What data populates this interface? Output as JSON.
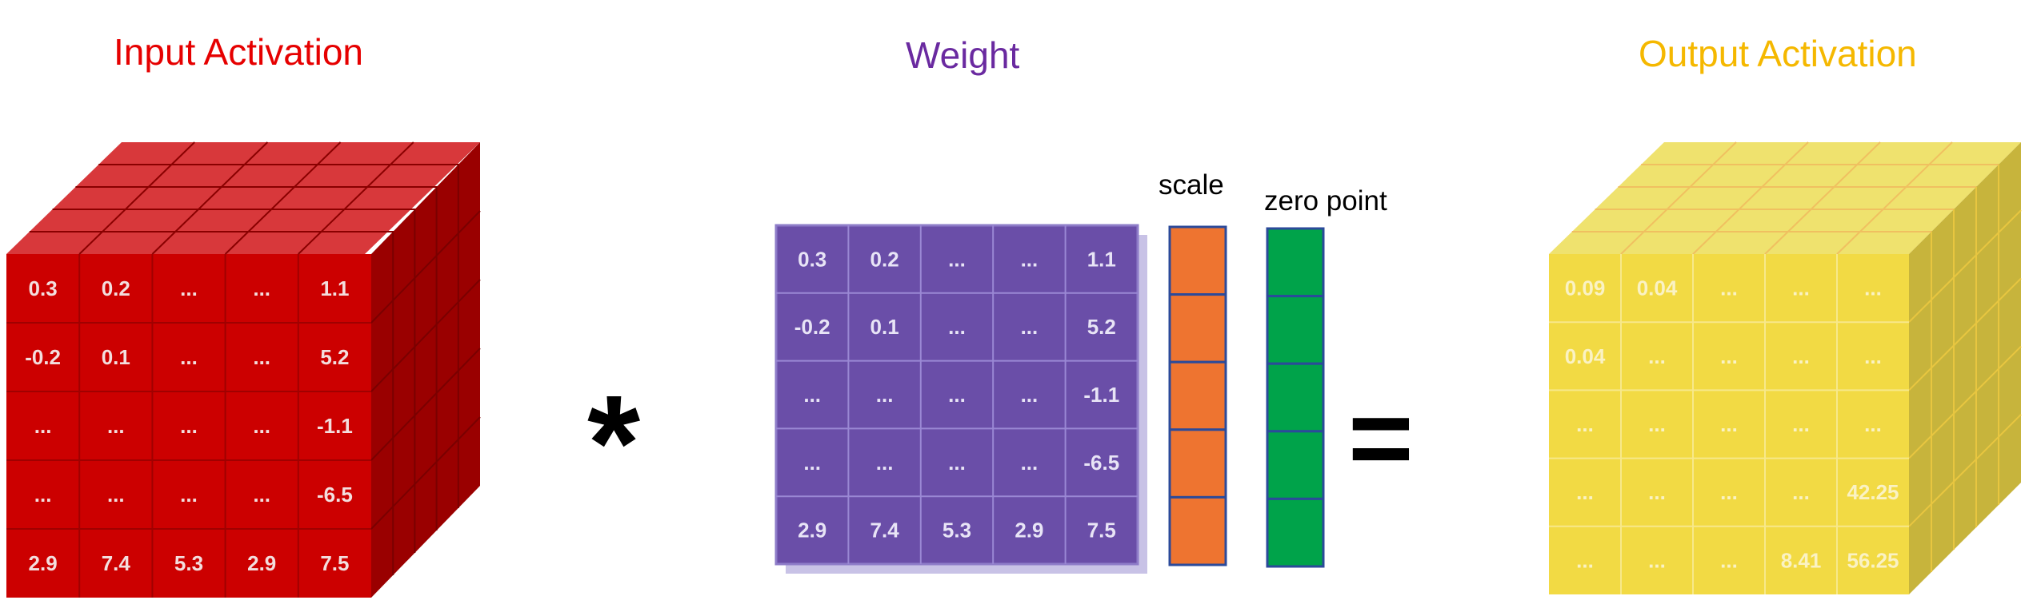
{
  "titles": {
    "input": "Input Activation",
    "weight": "Weight",
    "output": "Output Activation"
  },
  "labels": {
    "scale": "scale",
    "zero_point": "zero point"
  },
  "operators": {
    "multiply": "*",
    "equals": "="
  },
  "colors": {
    "input_front": "#cc0000",
    "input_top": "#d8383b",
    "input_side": "#9a0000",
    "weight_front": "#6a4ea8",
    "weight_shadow": "#c8c2e6",
    "scale": "#ee7430",
    "zero_point": "#00a34a",
    "output_front": "#f2da44",
    "output_top": "#efe26e",
    "output_side": "#c7b43c",
    "input_title": "#e60000",
    "weight_title": "#6a2aa0",
    "output_title": "#f5b800"
  },
  "input_matrix": [
    [
      "0.3",
      "0.2",
      "...",
      "...",
      "1.1"
    ],
    [
      "-0.2",
      "0.1",
      "...",
      "...",
      "5.2"
    ],
    [
      "...",
      "...",
      "...",
      "...",
      "-1.1"
    ],
    [
      "...",
      "...",
      "...",
      "...",
      "-6.5"
    ],
    [
      "2.9",
      "7.4",
      "5.3",
      "2.9",
      "7.5"
    ]
  ],
  "weight_matrix": [
    [
      "0.3",
      "0.2",
      "...",
      "...",
      "1.1"
    ],
    [
      "-0.2",
      "0.1",
      "...",
      "...",
      "5.2"
    ],
    [
      "...",
      "...",
      "...",
      "...",
      "-1.1"
    ],
    [
      "...",
      "...",
      "...",
      "...",
      "-6.5"
    ],
    [
      "2.9",
      "7.4",
      "5.3",
      "2.9",
      "7.5"
    ]
  ],
  "output_matrix": [
    [
      "0.09",
      "0.04",
      "...",
      "...",
      "..."
    ],
    [
      "0.04",
      "...",
      "...",
      "...",
      "..."
    ],
    [
      "...",
      "...",
      "...",
      "...",
      "..."
    ],
    [
      "...",
      "...",
      "...",
      "...",
      "42.25"
    ],
    [
      "...",
      "...",
      "...",
      "8.41",
      "56.25"
    ]
  ]
}
